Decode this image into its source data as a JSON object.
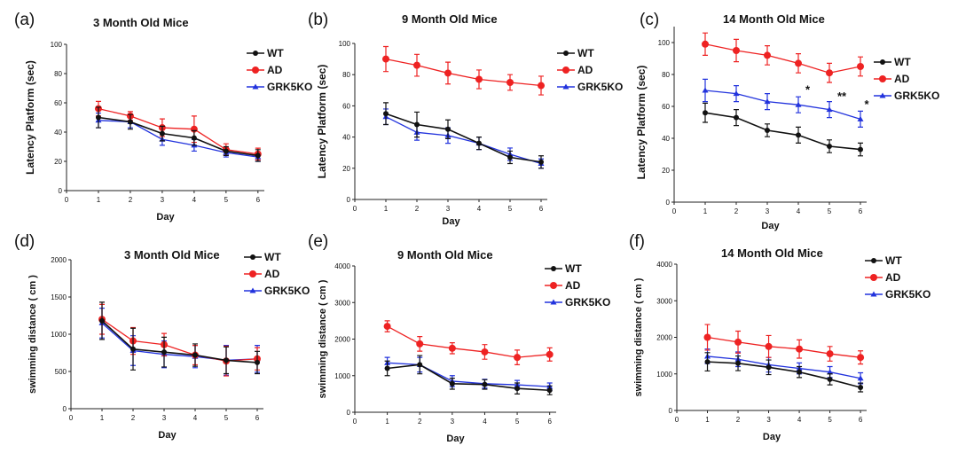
{
  "chart_data": [
    {
      "id": "a",
      "panel_label": "(a)",
      "type": "line",
      "title": "3 Month Old Mice",
      "xlabel": "Day",
      "ylabel": "Latency Platform (sec)",
      "xlim": [
        0,
        6.2
      ],
      "ylim": [
        0,
        100
      ],
      "xticks": [
        0,
        1,
        2,
        3,
        4,
        5,
        6
      ],
      "yticks": [
        0,
        20,
        40,
        60,
        80,
        100
      ],
      "ytick_labels": [
        "0",
        "20",
        "40",
        "60",
        "80",
        "100"
      ],
      "legend": [
        "WT",
        "AD",
        "GRK5KO"
      ],
      "series": [
        {
          "name": "WT",
          "x": [
            1,
            2,
            3,
            4,
            5,
            6
          ],
          "values": [
            50,
            47,
            39,
            36,
            27,
            24
          ],
          "errors": [
            7,
            5,
            5,
            5,
            3,
            4
          ]
        },
        {
          "name": "AD",
          "x": [
            1,
            2,
            3,
            4,
            5,
            6
          ],
          "values": [
            56,
            51,
            43,
            42,
            28,
            25
          ],
          "errors": [
            5,
            3,
            6,
            9,
            4,
            4
          ]
        },
        {
          "name": "GRK5KO",
          "x": [
            1,
            2,
            3,
            4,
            5,
            6
          ],
          "values": [
            48,
            47,
            35,
            31,
            26,
            23
          ],
          "errors": [
            5,
            4,
            4,
            4,
            3,
            3
          ]
        }
      ]
    },
    {
      "id": "b",
      "panel_label": "(b)",
      "type": "line",
      "title": "9 Month Old Mice",
      "xlabel": "Day",
      "ylabel": "Latency Platform (sec)",
      "xlim": [
        0,
        6.2
      ],
      "ylim": [
        0,
        100
      ],
      "xticks": [
        0,
        1,
        2,
        3,
        4,
        5,
        6
      ],
      "yticks": [
        0,
        20,
        40,
        60,
        80,
        100
      ],
      "ytick_labels": [
        "0",
        "20",
        "40",
        "60",
        "80",
        "100"
      ],
      "legend": [
        "WT",
        "AD",
        "GRK5KO"
      ],
      "series": [
        {
          "name": "WT",
          "x": [
            1,
            2,
            3,
            4,
            5,
            6
          ],
          "values": [
            55,
            48,
            45,
            36,
            27,
            24
          ],
          "errors": [
            7,
            8,
            6,
            4,
            4,
            4
          ]
        },
        {
          "name": "AD",
          "x": [
            1,
            2,
            3,
            4,
            5,
            6
          ],
          "values": [
            90,
            86,
            81,
            77,
            75,
            73
          ],
          "errors": [
            8,
            7,
            7,
            6,
            5,
            6
          ]
        },
        {
          "name": "GRK5KO",
          "x": [
            1,
            2,
            3,
            4,
            5,
            6
          ],
          "values": [
            53,
            43,
            41,
            36,
            29,
            23
          ],
          "errors": [
            5,
            5,
            5,
            4,
            4,
            3
          ]
        }
      ]
    },
    {
      "id": "c",
      "panel_label": "(c)",
      "type": "line",
      "title": "14 Month Old Mice",
      "xlabel": "Day",
      "ylabel": "Latency Platform (sec)",
      "xlim": [
        0,
        6.2
      ],
      "ylim": [
        0,
        110
      ],
      "xticks": [
        0,
        1,
        2,
        3,
        4,
        5,
        6
      ],
      "yticks": [
        0,
        20,
        40,
        60,
        80,
        100
      ],
      "ytick_labels": [
        "0",
        "20",
        "40",
        "60",
        "80",
        "100"
      ],
      "legend": [
        "WT",
        "AD",
        "GRK5KO"
      ],
      "annotations": [
        {
          "text": "*",
          "x": 4.3,
          "y": 68
        },
        {
          "text": "**",
          "x": 5.4,
          "y": 64
        },
        {
          "text": "*",
          "x": 6.2,
          "y": 59
        }
      ],
      "series": [
        {
          "name": "WT",
          "x": [
            1,
            2,
            3,
            4,
            5,
            6
          ],
          "values": [
            56,
            53,
            45,
            42,
            35,
            33
          ],
          "errors": [
            6,
            5,
            4,
            5,
            4,
            4
          ]
        },
        {
          "name": "AD",
          "x": [
            1,
            2,
            3,
            4,
            5,
            6
          ],
          "values": [
            99,
            95,
            92,
            87,
            81,
            85
          ],
          "errors": [
            7,
            7,
            6,
            6,
            6,
            6
          ]
        },
        {
          "name": "GRK5KO",
          "x": [
            1,
            2,
            3,
            4,
            5,
            6
          ],
          "values": [
            70,
            68,
            63,
            61,
            58,
            52
          ],
          "errors": [
            7,
            5,
            5,
            5,
            5,
            5
          ]
        }
      ]
    },
    {
      "id": "d",
      "panel_label": "(d)",
      "type": "line",
      "title": "3 Month Old Mice",
      "xlabel": "Day",
      "ylabel": "swimming distance ( cm )",
      "xlim": [
        0,
        6.2
      ],
      "ylim": [
        0,
        2000
      ],
      "xticks": [
        0,
        1,
        2,
        3,
        4,
        5,
        6
      ],
      "yticks": [
        0,
        500,
        1000,
        1500,
        2000
      ],
      "ytick_labels": [
        "0",
        "500",
        "1000",
        "1500",
        "2000"
      ],
      "legend": [
        "WT",
        "AD",
        "GRK5KO"
      ],
      "series": [
        {
          "name": "WT",
          "x": [
            1,
            2,
            3,
            4,
            5,
            6
          ],
          "values": [
            1180,
            800,
            760,
            720,
            650,
            620
          ],
          "errors": [
            250,
            280,
            200,
            150,
            180,
            150
          ]
        },
        {
          "name": "AD",
          "x": [
            1,
            2,
            3,
            4,
            5,
            6
          ],
          "values": [
            1200,
            910,
            860,
            720,
            640,
            670
          ],
          "errors": [
            200,
            180,
            150,
            130,
            200,
            150
          ]
        },
        {
          "name": "GRK5KO",
          "x": [
            1,
            2,
            3,
            4,
            5,
            6
          ],
          "values": [
            1150,
            780,
            730,
            700,
            650,
            670
          ],
          "errors": [
            200,
            200,
            180,
            150,
            200,
            180
          ]
        }
      ]
    },
    {
      "id": "e",
      "panel_label": "(e)",
      "type": "line",
      "title": "9 Month Old Mice",
      "xlabel": "Day",
      "ylabel": "swimming distance ( cm )",
      "xlim": [
        0,
        6.2
      ],
      "ylim": [
        0,
        4000
      ],
      "xticks": [
        0,
        1,
        2,
        3,
        4,
        5,
        6
      ],
      "yticks": [
        0,
        1000,
        2000,
        3000,
        4000
      ],
      "ytick_labels": [
        "0",
        "1000",
        "2000",
        "3000",
        "4000"
      ],
      "legend": [
        "WT",
        "AD",
        "GRK5KO"
      ],
      "series": [
        {
          "name": "WT",
          "x": [
            1,
            2,
            3,
            4,
            5,
            6
          ],
          "values": [
            1200,
            1300,
            780,
            760,
            650,
            600
          ],
          "errors": [
            200,
            250,
            150,
            130,
            150,
            120
          ]
        },
        {
          "name": "AD",
          "x": [
            1,
            2,
            3,
            4,
            5,
            6
          ],
          "values": [
            2350,
            1870,
            1750,
            1650,
            1500,
            1580
          ],
          "errors": [
            150,
            200,
            150,
            200,
            200,
            180
          ]
        },
        {
          "name": "GRK5KO",
          "x": [
            1,
            2,
            3,
            4,
            5,
            6
          ],
          "values": [
            1350,
            1300,
            850,
            780,
            750,
            700
          ],
          "errors": [
            150,
            200,
            150,
            120,
            120,
            100
          ]
        }
      ]
    },
    {
      "id": "f",
      "panel_label": "(f)",
      "type": "line",
      "title": "14 Month Old Mice",
      "xlabel": "Day",
      "ylabel": "swimming distance ( cm )",
      "xlim": [
        0,
        6.2
      ],
      "ylim": [
        0,
        4000
      ],
      "xticks": [
        0,
        1,
        2,
        3,
        4,
        5,
        6
      ],
      "yticks": [
        0,
        1000,
        2000,
        3000,
        4000
      ],
      "ytick_labels": [
        "0",
        "1000",
        "2000",
        "3000",
        "4000"
      ],
      "legend": [
        "WT",
        "AD",
        "GRK5KO"
      ],
      "series": [
        {
          "name": "WT",
          "x": [
            1,
            2,
            3,
            4,
            5,
            6
          ],
          "values": [
            1330,
            1290,
            1180,
            1050,
            850,
            630
          ],
          "errors": [
            250,
            200,
            200,
            150,
            150,
            120
          ]
        },
        {
          "name": "AD",
          "x": [
            1,
            2,
            3,
            4,
            5,
            6
          ],
          "values": [
            2000,
            1870,
            1750,
            1680,
            1550,
            1450
          ],
          "errors": [
            350,
            300,
            300,
            250,
            200,
            180
          ]
        },
        {
          "name": "GRK5KO",
          "x": [
            1,
            2,
            3,
            4,
            5,
            6
          ],
          "values": [
            1480,
            1400,
            1250,
            1150,
            1050,
            880
          ],
          "errors": [
            200,
            200,
            200,
            150,
            150,
            150
          ]
        }
      ]
    }
  ],
  "colors": {
    "WT": "#111111",
    "AD": "#ee2222",
    "GRK5KO": "#2233dd"
  }
}
